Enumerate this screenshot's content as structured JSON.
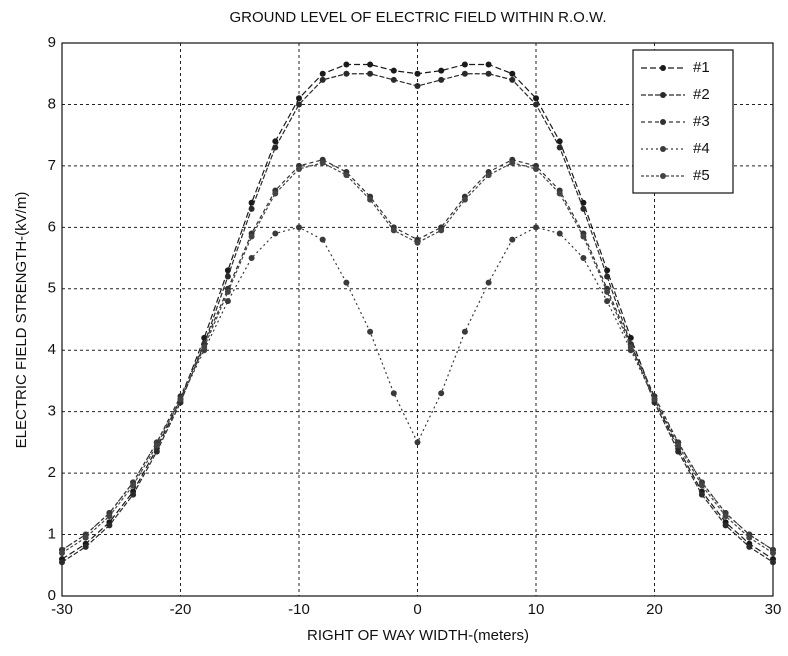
{
  "chart_data": {
    "type": "line",
    "title": "GROUND LEVEL OF ELECTRIC FIELD WITHIN R.O.W.",
    "x_label": "RIGHT OF WAY WIDTH-(meters)",
    "y_label": "ELECTRIC FIELD STRENGTH-(kV/m)",
    "x": [
      -30,
      -28,
      -26,
      -24,
      -22,
      -20,
      -18,
      -16,
      -14,
      -12,
      -10,
      -8,
      -6,
      -4,
      -2,
      0,
      2,
      4,
      6,
      8,
      10,
      12,
      14,
      16,
      18,
      20,
      22,
      24,
      26,
      28,
      30
    ],
    "series": [
      {
        "name": "#1",
        "color": "#1a1a1a",
        "values": [
          0.6,
          0.85,
          1.2,
          1.7,
          2.4,
          3.2,
          4.2,
          5.3,
          6.4,
          7.4,
          8.1,
          8.5,
          8.65,
          8.65,
          8.55,
          8.5,
          8.55,
          8.65,
          8.65,
          8.5,
          8.1,
          7.4,
          6.4,
          5.3,
          4.2,
          3.2,
          2.4,
          1.7,
          1.2,
          0.85,
          0.6
        ]
      },
      {
        "name": "#2",
        "color": "#2a2a2a",
        "values": [
          0.55,
          0.8,
          1.15,
          1.65,
          2.35,
          3.15,
          4.1,
          5.2,
          6.3,
          7.3,
          8.0,
          8.4,
          8.5,
          8.5,
          8.4,
          8.3,
          8.4,
          8.5,
          8.5,
          8.4,
          8.0,
          7.3,
          6.3,
          5.2,
          4.1,
          3.15,
          2.35,
          1.65,
          1.15,
          0.8,
          0.55
        ]
      },
      {
        "name": "#3",
        "color": "#333333",
        "values": [
          0.75,
          1.0,
          1.35,
          1.85,
          2.5,
          3.25,
          4.1,
          5.0,
          5.9,
          6.6,
          7.0,
          7.1,
          6.9,
          6.5,
          6.0,
          5.8,
          6.0,
          6.5,
          6.9,
          7.1,
          7.0,
          6.6,
          5.9,
          5.0,
          4.1,
          3.25,
          2.5,
          1.85,
          1.35,
          1.0,
          0.75
        ]
      },
      {
        "name": "#4",
        "color": "#3a3a3a",
        "values": [
          0.75,
          1.0,
          1.35,
          1.85,
          2.5,
          3.2,
          4.0,
          4.8,
          5.5,
          5.9,
          6.0,
          5.8,
          5.1,
          4.3,
          3.3,
          2.5,
          3.3,
          4.3,
          5.1,
          5.8,
          6.0,
          5.9,
          5.5,
          4.8,
          4.0,
          3.2,
          2.5,
          1.85,
          1.35,
          1.0,
          0.75
        ]
      },
      {
        "name": "#5",
        "color": "#444444",
        "values": [
          0.7,
          0.95,
          1.3,
          1.8,
          2.45,
          3.2,
          4.05,
          4.95,
          5.85,
          6.55,
          6.95,
          7.05,
          6.85,
          6.45,
          5.95,
          5.75,
          5.95,
          6.45,
          6.85,
          7.05,
          6.95,
          6.55,
          5.85,
          4.95,
          4.05,
          3.2,
          2.45,
          1.8,
          1.3,
          0.95,
          0.7
        ]
      }
    ],
    "xlim": [
      -30,
      30
    ],
    "xticks": [
      -30,
      -20,
      -10,
      0,
      10,
      20,
      30
    ],
    "ylim": [
      0,
      9
    ],
    "yticks": [
      0,
      1,
      2,
      3,
      4,
      5,
      6,
      7,
      8,
      9
    ],
    "grid": true,
    "legend": "upper right"
  }
}
